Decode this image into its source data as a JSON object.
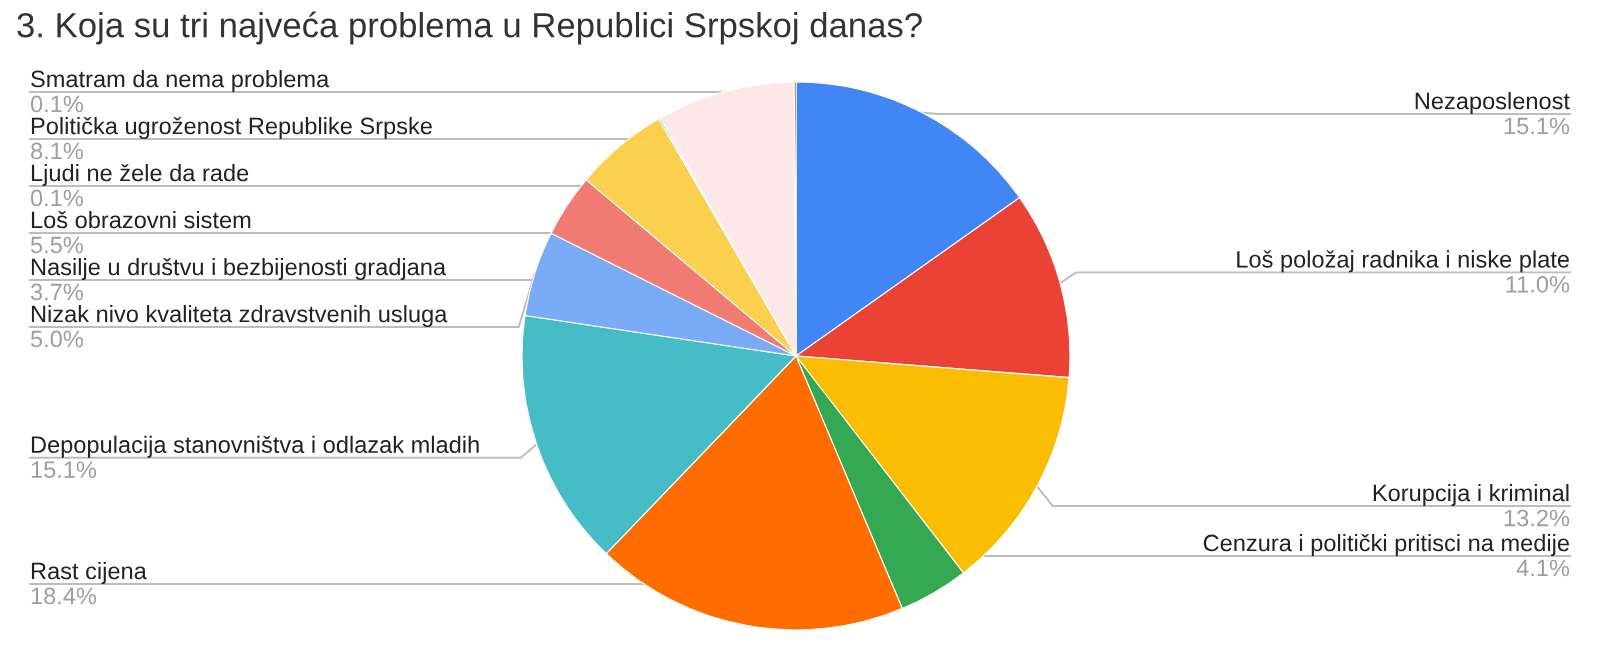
{
  "chart_data": {
    "type": "pie",
    "title": "3. Koja su tri najveća problema u Republici Srpskoj danas?",
    "categories": [
      "Nezaposlenost",
      "Loš položaj radnika i niske plate",
      "Korupcija i kriminal",
      "Cenzura i politički pritisci na medije",
      "Rast cijena",
      "Depopulacija stanovništva i odlazak mladih",
      "Nizak nivo kvaliteta zdravstvenih usluga",
      "Nasilje u društvu i bezbijenosti gradjana",
      "Loš obrazovni sistem",
      "Ljudi ne žele da rade",
      "Politička ugroženost Republike Srpske",
      "Smatram da nema problema"
    ],
    "values": [
      15.1,
      11.0,
      13.2,
      4.1,
      18.4,
      15.1,
      5.0,
      3.7,
      5.5,
      0.1,
      8.1,
      0.1
    ],
    "colors": [
      "#4285f4",
      "#ea4335",
      "#fbbc04",
      "#34a853",
      "#ff6d01",
      "#46bdc6",
      "#7baaf7",
      "#f07b72",
      "#fcd04f",
      "#71c287",
      "#fce8e6",
      "#222222"
    ],
    "value_labels": [
      "15.1%",
      "11.0%",
      "13.2%",
      "4.1%",
      "18.4%",
      "15.1%",
      "5.0%",
      "3.7%",
      "5.5%",
      "0.1%",
      "8.1%",
      "0.1%"
    ]
  }
}
